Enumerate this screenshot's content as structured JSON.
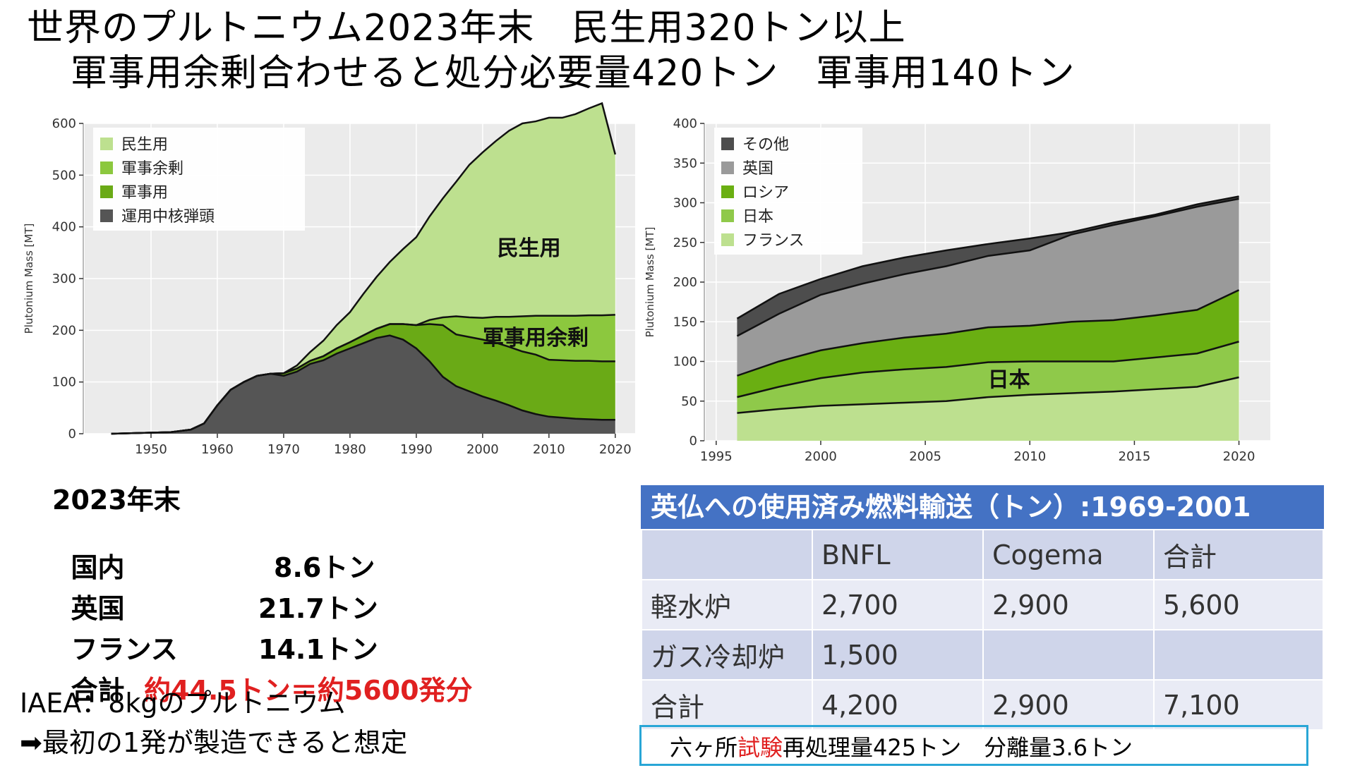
{
  "title": {
    "line1": "世界のプルトニウム2023年末　民生用320トン以上",
    "line2": "軍事用余剰合わせると処分必要量420トン　軍事用140トン"
  },
  "colors": {
    "civil": "#bde08f",
    "surplus": "#8cc83e",
    "military": "#6aaa16",
    "warheads": "#555555",
    "other": "#4d4d4d",
    "uk": "#9a9a9a",
    "russia": "#6aaf12",
    "japan": "#8fc94a",
    "france": "#bde08f",
    "plot_bg": "#ebebeb",
    "table_header": "#4472c4",
    "accent_red": "#e02020",
    "box_border": "#29a6d6"
  },
  "chart_data": [
    {
      "type": "area",
      "stacked": true,
      "ylabel": "Plutonium Mass [MT]",
      "xlabel": "",
      "xlim": [
        1940,
        2023
      ],
      "ylim": [
        0,
        600
      ],
      "xticks": [
        "1950",
        "1960",
        "1970",
        "1980",
        "1990",
        "2000",
        "2010",
        "2020"
      ],
      "yticks": [
        "0",
        "100",
        "200",
        "300",
        "400",
        "500",
        "600"
      ],
      "legend": [
        "民生用",
        "軍事余剰",
        "軍事用",
        "運用中核弾頭"
      ],
      "legend_position": "top-left",
      "annotations": [
        "民生用",
        "軍事用余剰"
      ],
      "x": [
        1944,
        1950,
        1953,
        1956,
        1958,
        1960,
        1962,
        1964,
        1966,
        1968,
        1970,
        1972,
        1974,
        1976,
        1978,
        1980,
        1982,
        1984,
        1986,
        1988,
        1990,
        1992,
        1994,
        1996,
        1998,
        2000,
        2002,
        2004,
        2006,
        2008,
        2010,
        2012,
        2014,
        2016,
        2018,
        2020
      ],
      "series": [
        {
          "name": "運用中核弾頭",
          "values": [
            0,
            2,
            3,
            8,
            20,
            55,
            85,
            100,
            112,
            116,
            112,
            120,
            135,
            142,
            155,
            165,
            175,
            185,
            190,
            182,
            165,
            140,
            110,
            92,
            82,
            72,
            64,
            55,
            45,
            38,
            33,
            31,
            29,
            28,
            27,
            27
          ]
        },
        {
          "name": "軍事用",
          "values": [
            0,
            0,
            0,
            0,
            0,
            0,
            0,
            0,
            0,
            0,
            5,
            6,
            6,
            8,
            10,
            12,
            15,
            18,
            22,
            30,
            45,
            72,
            100,
            100,
            105,
            110,
            112,
            113,
            114,
            115,
            110,
            111,
            112,
            113,
            113,
            113
          ]
        },
        {
          "name": "軍事余剰",
          "values": [
            0,
            0,
            0,
            0,
            0,
            0,
            0,
            0,
            0,
            0,
            0,
            0,
            0,
            0,
            0,
            0,
            0,
            0,
            0,
            0,
            0,
            8,
            15,
            35,
            38,
            42,
            50,
            58,
            68,
            75,
            85,
            86,
            87,
            88,
            89,
            90
          ]
        },
        {
          "name": "民生用",
          "values": [
            0,
            0,
            0,
            0,
            0,
            0,
            0,
            0,
            0,
            0,
            0,
            6,
            17,
            30,
            45,
            58,
            80,
            100,
            120,
            145,
            170,
            200,
            230,
            260,
            295,
            320,
            340,
            360,
            373,
            376,
            383,
            383,
            390,
            400,
            410,
            310
          ]
        }
      ]
    },
    {
      "type": "area",
      "stacked": true,
      "ylabel": "Plutonium Mass [MT]",
      "xlabel": "",
      "xlim": [
        1994.5,
        2021.5
      ],
      "ylim": [
        0,
        400
      ],
      "xticks": [
        "1995",
        "2000",
        "2005",
        "2010",
        "2015",
        "2020"
      ],
      "yticks": [
        "0",
        "50",
        "100",
        "150",
        "200",
        "250",
        "300",
        "350",
        "400"
      ],
      "legend": [
        "その他",
        "英国",
        "ロシア",
        "日本",
        "フランス"
      ],
      "legend_position": "top-left",
      "annotations": [
        "日本"
      ],
      "x": [
        1996,
        1998,
        2000,
        2002,
        2004,
        2006,
        2008,
        2010,
        2012,
        2014,
        2016,
        2018,
        2020
      ],
      "series": [
        {
          "name": "フランス",
          "values": [
            35,
            40,
            44,
            46,
            48,
            50,
            55,
            58,
            60,
            62,
            65,
            68,
            80
          ]
        },
        {
          "name": "日本",
          "values": [
            20,
            28,
            35,
            40,
            42,
            43,
            44,
            42,
            40,
            38,
            40,
            42,
            45
          ]
        },
        {
          "name": "ロシア",
          "values": [
            27,
            32,
            35,
            37,
            40,
            42,
            44,
            45,
            50,
            52,
            53,
            55,
            65
          ]
        },
        {
          "name": "英国",
          "values": [
            50,
            60,
            70,
            75,
            80,
            85,
            90,
            95,
            110,
            120,
            125,
            130,
            115
          ]
        },
        {
          "name": "その他",
          "values": [
            22,
            25,
            20,
            22,
            21,
            20,
            15,
            15,
            3,
            3,
            2,
            3,
            3
          ]
        }
      ]
    }
  ],
  "stats": {
    "heading": "2023年末",
    "rows": [
      {
        "label": "国内",
        "value": "8.6トン"
      },
      {
        "label": "英国",
        "value": "21.7トン"
      },
      {
        "label": "フランス",
        "value": "14.1トン"
      }
    ],
    "total_label": "合計",
    "total_value": "約44.5トン＝約5600発分"
  },
  "notes": {
    "iaea": "IAEA：8kgのプルトニウム",
    "first": "➡最初の1発が製造できると想定"
  },
  "transport_table": {
    "caption": "英仏への使用済み燃料輸送（トン）:1969-2001",
    "headers": [
      "",
      "BNFL",
      "Cogema",
      "合計"
    ],
    "rows": [
      [
        "軽水炉",
        "2,700",
        "2,900",
        "5,600"
      ],
      [
        "ガス冷却炉",
        "1,500",
        "",
        ""
      ],
      [
        "合計",
        "4,200",
        "2,900",
        "7,100"
      ]
    ]
  },
  "rokkasho": {
    "prefix": "六ヶ所",
    "highlight": "試験",
    "suffix": "再処理量425トン　分離量3.6トン"
  }
}
